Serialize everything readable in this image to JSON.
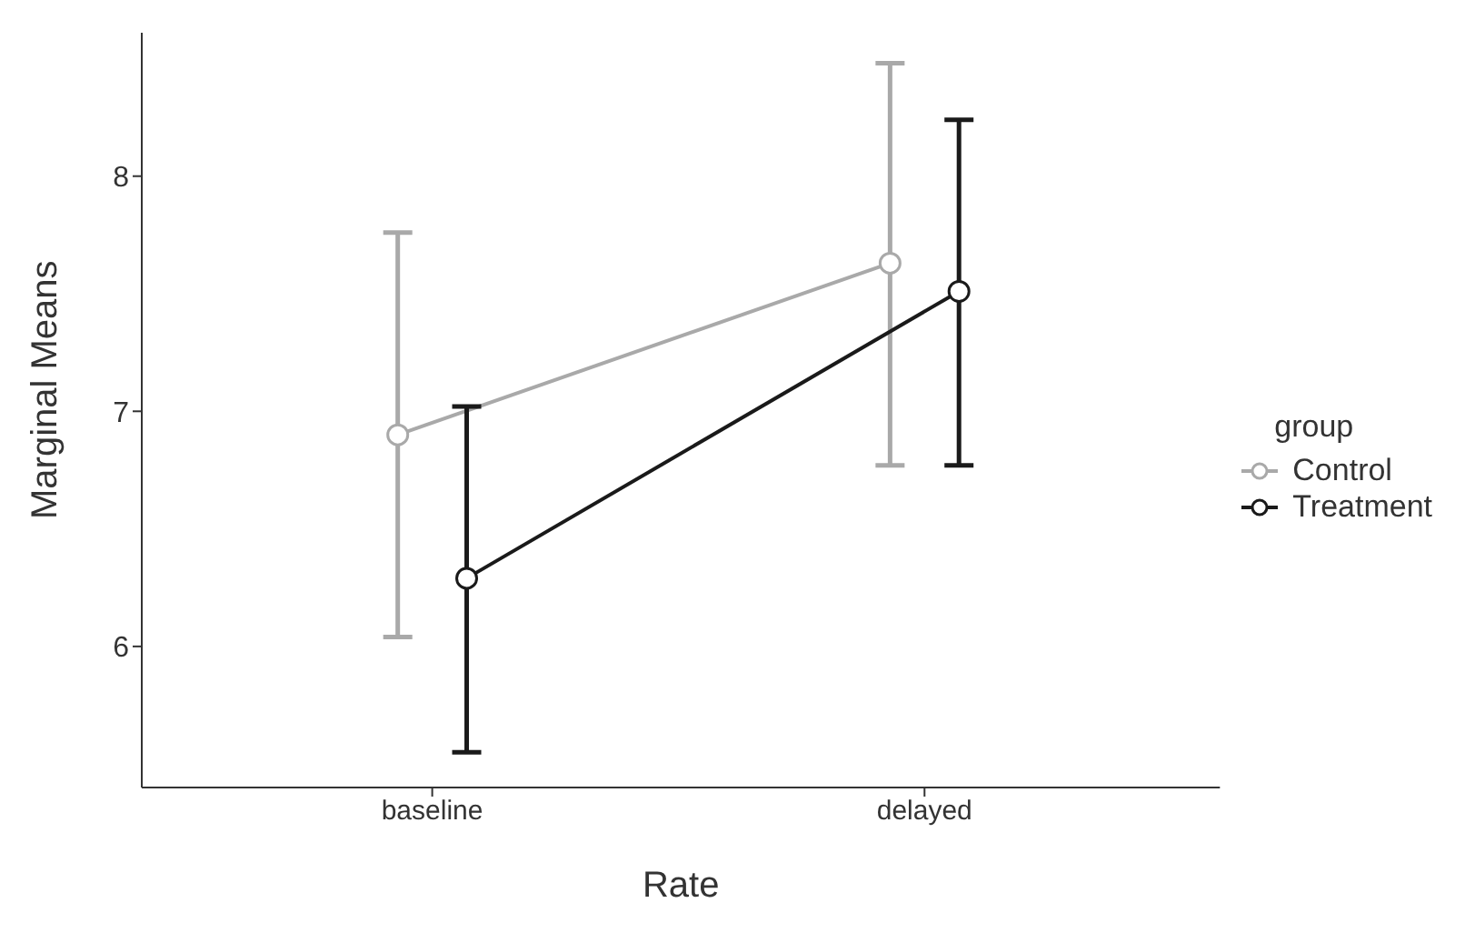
{
  "chart_data": {
    "type": "line",
    "xlabel": "Rate",
    "ylabel": "Marginal Means",
    "legend_title": "group",
    "categories": [
      "baseline",
      "delayed"
    ],
    "series": [
      {
        "name": "Control",
        "color": "#a9a9a9",
        "values": [
          6.9,
          7.63
        ],
        "errors": [
          [
            6.04,
            7.76
          ],
          [
            6.77,
            8.48
          ]
        ]
      },
      {
        "name": "Treatment",
        "color": "#1a1a1a",
        "values": [
          6.29,
          7.51
        ],
        "errors": [
          [
            5.55,
            7.02
          ],
          [
            6.77,
            8.24
          ]
        ]
      }
    ],
    "ylim": [
      5.4,
      8.61
    ],
    "yticks": [
      6,
      7,
      8
    ],
    "grid": false,
    "legend": "right",
    "marker": "circle",
    "line_style": "solid"
  }
}
